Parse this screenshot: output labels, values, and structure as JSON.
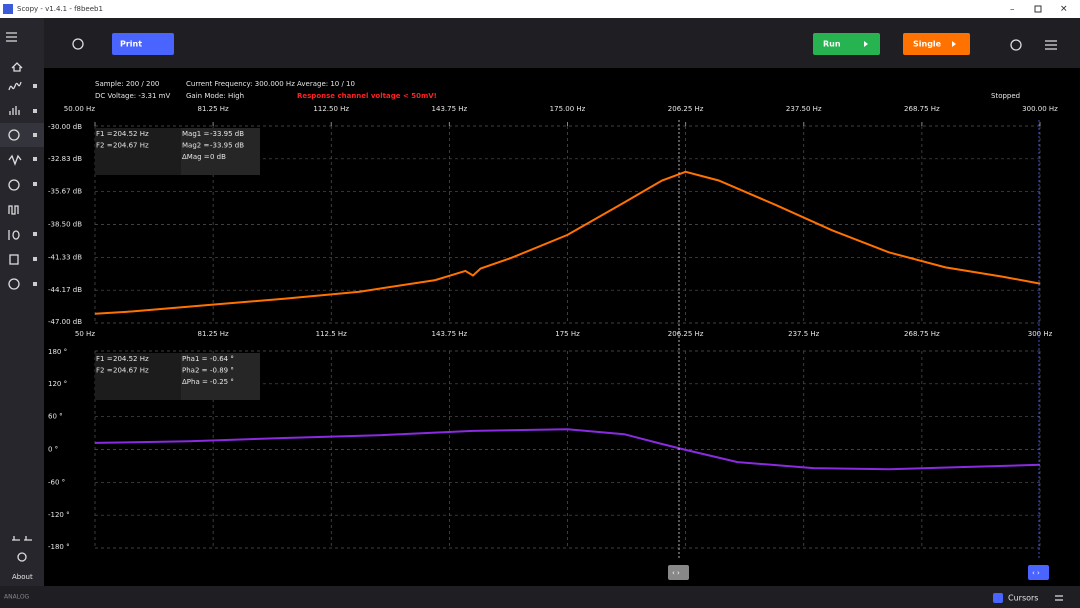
{
  "window": {
    "title": "Scopy - v1.4.1 - f8beeb1"
  },
  "toolbar": {
    "print": "Print",
    "run": "Run",
    "single": "Single"
  },
  "status": {
    "sample": "Sample: 200 / 200",
    "dc_voltage": "DC Voltage: -3.31 mV",
    "current_frequency": "Current Frequency: 300.000 Hz",
    "gain_mode": "Gain Mode: High",
    "average": "Average: 10 / 10",
    "warning": "Response channel voltage < 50mV!",
    "state": "Stopped"
  },
  "readouts": [
    [
      [
        {
          "label": "F1 =",
          "value": "204.52 Hz"
        },
        {
          "label": "F2 =",
          "value": "204.67 Hz"
        }
      ],
      [
        {
          "label": "Mag1 =",
          "value": "-33.95 dB"
        },
        {
          "label": "Mag2 =",
          "value": "-33.95 dB"
        },
        {
          "label": "ΔMag =",
          "value": "0 dB"
        }
      ]
    ],
    [
      [
        {
          "label": "F1 =",
          "value": "204.52 Hz"
        },
        {
          "label": "F2 =",
          "value": "204.67 Hz"
        }
      ],
      [
        {
          "label": "Pha1 =",
          "value": "-0.64 °"
        },
        {
          "label": "Pha2 =",
          "value": "-0.89 °"
        },
        {
          "label": "ΔPha =",
          "value": "-0.25 °"
        }
      ]
    ]
  ],
  "sidebar": {
    "about": "About"
  },
  "footer": {
    "cursors": "Cursors"
  },
  "chart_data": [
    {
      "type": "line",
      "color": "#ff7200",
      "x": [
        50,
        60,
        80,
        100,
        120,
        140,
        148,
        150,
        152,
        160,
        175,
        190,
        200,
        206.25,
        215,
        230,
        245,
        260,
        275,
        290,
        300
      ],
      "values": [
        -46.2,
        -46.0,
        -45.45,
        -44.9,
        -44.3,
        -43.3,
        -42.5,
        -42.9,
        -42.3,
        -41.4,
        -39.4,
        -36.6,
        -34.7,
        -33.95,
        -34.7,
        -36.8,
        -39.0,
        -40.9,
        -42.2,
        -43.0,
        -43.6
      ],
      "xlim": [
        50,
        300
      ],
      "ylim": [
        -47,
        -30
      ],
      "yticks": [
        {
          "value": -30,
          "label": "-30.00 dB"
        },
        {
          "value": -32.83,
          "label": "-32.83 dB"
        },
        {
          "value": -35.67,
          "label": "-35.67 dB"
        },
        {
          "value": -38.5,
          "label": "-38.50 dB"
        },
        {
          "value": -41.33,
          "label": "-41.33 dB"
        },
        {
          "value": -44.17,
          "label": "-44.17 dB"
        },
        {
          "value": -47,
          "label": "-47.00 dB"
        }
      ],
      "xticks": [
        {
          "value": 50,
          "label": "50 Hz"
        },
        {
          "value": 81.25,
          "label": "81.25 Hz"
        },
        {
          "value": 112.5,
          "label": "112.5 Hz"
        },
        {
          "value": 143.75,
          "label": "143.75 Hz"
        },
        {
          "value": 175,
          "label": "175 Hz"
        },
        {
          "value": 206.25,
          "label": "206.25 Hz"
        },
        {
          "value": 237.5,
          "label": "237.5 Hz"
        },
        {
          "value": 268.75,
          "label": "268.75 Hz"
        },
        {
          "value": 300,
          "label": "300 Hz"
        }
      ],
      "x2ticks": [
        {
          "value": 50,
          "label": "50.00 Hz"
        },
        {
          "value": 81.25,
          "label": "81.25 Hz"
        },
        {
          "value": 112.5,
          "label": "112.50 Hz"
        },
        {
          "value": 143.75,
          "label": "143.75 Hz"
        },
        {
          "value": 175,
          "label": "175.00 Hz"
        },
        {
          "value": 206.25,
          "label": "206.25 Hz"
        },
        {
          "value": 237.5,
          "label": "237.50 Hz"
        },
        {
          "value": 268.75,
          "label": "268.75 Hz"
        },
        {
          "value": 300,
          "label": "300.00 Hz"
        }
      ],
      "grid": true
    },
    {
      "type": "line",
      "color": "#8a2be2",
      "x": [
        50,
        75,
        100,
        125,
        150,
        175,
        190,
        200,
        206.25,
        220,
        240,
        260,
        280,
        300
      ],
      "values": [
        12,
        15,
        21,
        26,
        34,
        37,
        28,
        10,
        -0.64,
        -23,
        -34,
        -36,
        -32,
        -28
      ],
      "xlim": [
        50,
        300
      ],
      "ylim": [
        -180,
        180
      ],
      "yticks": [
        {
          "value": 180,
          "label": "180 °"
        },
        {
          "value": 120,
          "label": "120 °"
        },
        {
          "value": 60,
          "label": "60 °"
        },
        {
          "value": 0,
          "label": "0 °"
        },
        {
          "value": -60,
          "label": "-60 °"
        },
        {
          "value": -120,
          "label": "-120 °"
        },
        {
          "value": -180,
          "label": "-180 °"
        }
      ],
      "xticks": [
        50,
        81.25,
        112.5,
        143.75,
        175,
        206.25,
        237.5,
        268.75,
        300
      ],
      "grid": true
    }
  ]
}
